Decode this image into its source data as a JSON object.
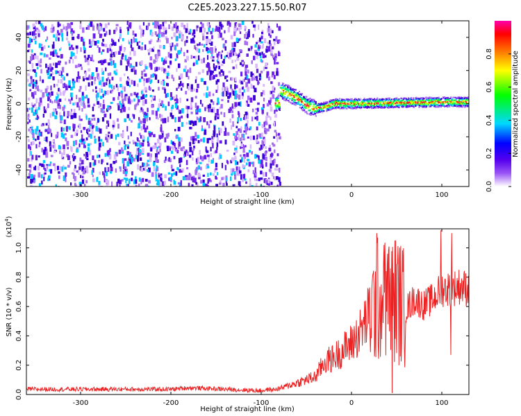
{
  "title": "C2E5.2023.227.15.50.R07",
  "chart_data": [
    {
      "type": "heatmap",
      "xlabel": "Height of straight line (km)",
      "ylabel": "Frequency (Hz)",
      "xlim": [
        -360,
        130
      ],
      "ylim": [
        -50,
        50
      ],
      "x_ticks": [
        -300,
        -200,
        -100,
        0,
        100
      ],
      "y_ticks": [
        -40,
        -20,
        0,
        20,
        40
      ],
      "colorbar": {
        "label": "Normalized spectral amplitude",
        "ticks": [
          "0.0",
          "0.2",
          "0.4",
          "0.6",
          "0.8"
        ],
        "tick_values": [
          0.0,
          0.2,
          0.4,
          0.6,
          0.8
        ],
        "range": [
          0,
          1
        ],
        "colors": [
          "#ffffff",
          "#5500ee",
          "#0000ff",
          "#00d8ff",
          "#00ff00",
          "#ffff00",
          "#ff8800",
          "#ff0000",
          "#ff00aa"
        ]
      },
      "regions": [
        {
          "x_from": -360,
          "x_to": -80,
          "description": "broadband noise",
          "amplitude": 0.1
        },
        {
          "x_from": -80,
          "x_to": 130,
          "description": "signal band",
          "amplitude": 0.5
        }
      ],
      "signal_track": [
        {
          "x": -80,
          "y": 8
        },
        {
          "x": -70,
          "y": 6
        },
        {
          "x": -60,
          "y": 3
        },
        {
          "x": -50,
          "y": -1
        },
        {
          "x": -40,
          "y": -3
        },
        {
          "x": -30,
          "y": -2
        },
        {
          "x": -20,
          "y": 0
        },
        {
          "x": 0,
          "y": 0
        },
        {
          "x": 50,
          "y": 0.5
        },
        {
          "x": 100,
          "y": 1
        },
        {
          "x": 130,
          "y": 1
        }
      ]
    },
    {
      "type": "line",
      "xlabel": "Height of straight line (km)",
      "ylabel": "SNR (10 * v/v)",
      "y_multiplier": "(x10",
      "y_multiplier_exp": "4",
      "y_multiplier_close": ")",
      "xlim": [
        -360,
        130
      ],
      "ylim": [
        0,
        1.13
      ],
      "x_ticks": [
        -300,
        -200,
        -100,
        0,
        100
      ],
      "y_ticks": [
        "0.0",
        "0.2",
        "0.4",
        "0.6",
        "0.8",
        "1.0"
      ],
      "y_tick_values": [
        0.0,
        0.2,
        0.4,
        0.6,
        0.8,
        1.0
      ],
      "series": [
        {
          "color": "#ee2222",
          "x": [
            -360,
            -300,
            -200,
            -180,
            -100,
            -80,
            -60,
            -40,
            -30,
            -20,
            0,
            10,
            20,
            30,
            40,
            50,
            60,
            70,
            80,
            90,
            100,
            110,
            120,
            130
          ],
          "y": [
            0.03,
            0.03,
            0.03,
            0.04,
            0.02,
            0.04,
            0.08,
            0.12,
            0.22,
            0.25,
            0.35,
            0.43,
            0.55,
            0.65,
            0.62,
            0.66,
            0.58,
            0.65,
            0.61,
            0.65,
            0.72,
            0.72,
            0.74,
            0.72
          ],
          "spikes": [
            {
              "x": 28,
              "y": 1.1
            },
            {
              "x": 36,
              "y": 1.02
            },
            {
              "x": 41,
              "y": 0.98
            },
            {
              "x": 45,
              "y": 0.01
            },
            {
              "x": 48,
              "y": 1.05
            },
            {
              "x": 99,
              "y": 1.12
            },
            {
              "x": 111,
              "y": 1.1
            },
            {
              "x": 110,
              "y": 0.27
            }
          ]
        }
      ]
    }
  ]
}
